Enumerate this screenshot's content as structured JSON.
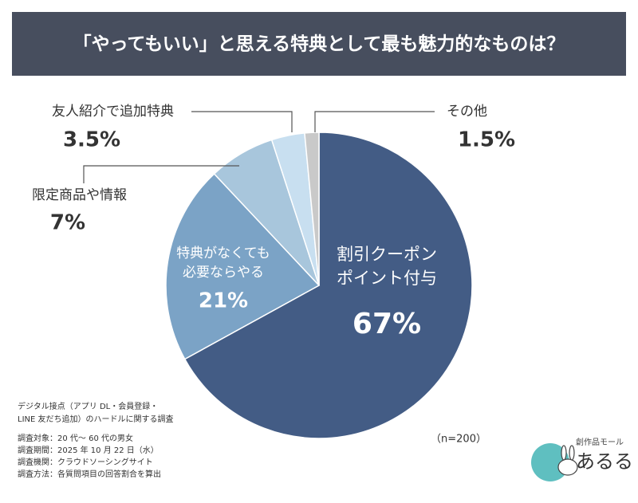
{
  "chart_data": {
    "type": "pie",
    "title": "「やってもいい」と思える特典として最も魅力的なものは？",
    "categories": [
      "割引クーポン\nポイント付与",
      "特典がなくても\n必要ならやる",
      "限定商品や情報",
      "友人紹介で追加特典",
      "その他"
    ],
    "values": [
      67,
      21,
      7,
      3.5,
      1.5
    ],
    "value_labels": [
      "67%",
      "21%",
      "7%",
      "3.5%",
      "1.5%"
    ],
    "colors": [
      "#435c85",
      "#7ba3c6",
      "#a8c6dc",
      "#c8dff0",
      "#c9c9c9"
    ],
    "sample_note": "（n=200）",
    "footnote": [
      "デジタル接点（アプリ DL・会員登録・",
      "LINE 友だち追加）のハードルに関する調査",
      "調査対象：20 代～ 60 代の男女",
      "調査期間：2025 年 10 月 22 日（水）",
      "調査機関：クラウドソーシングサイト",
      "調査方法：各質問項目の回答割合を算出"
    ],
    "logo": {
      "tagline": "創作品モール",
      "name": "あるる"
    }
  }
}
